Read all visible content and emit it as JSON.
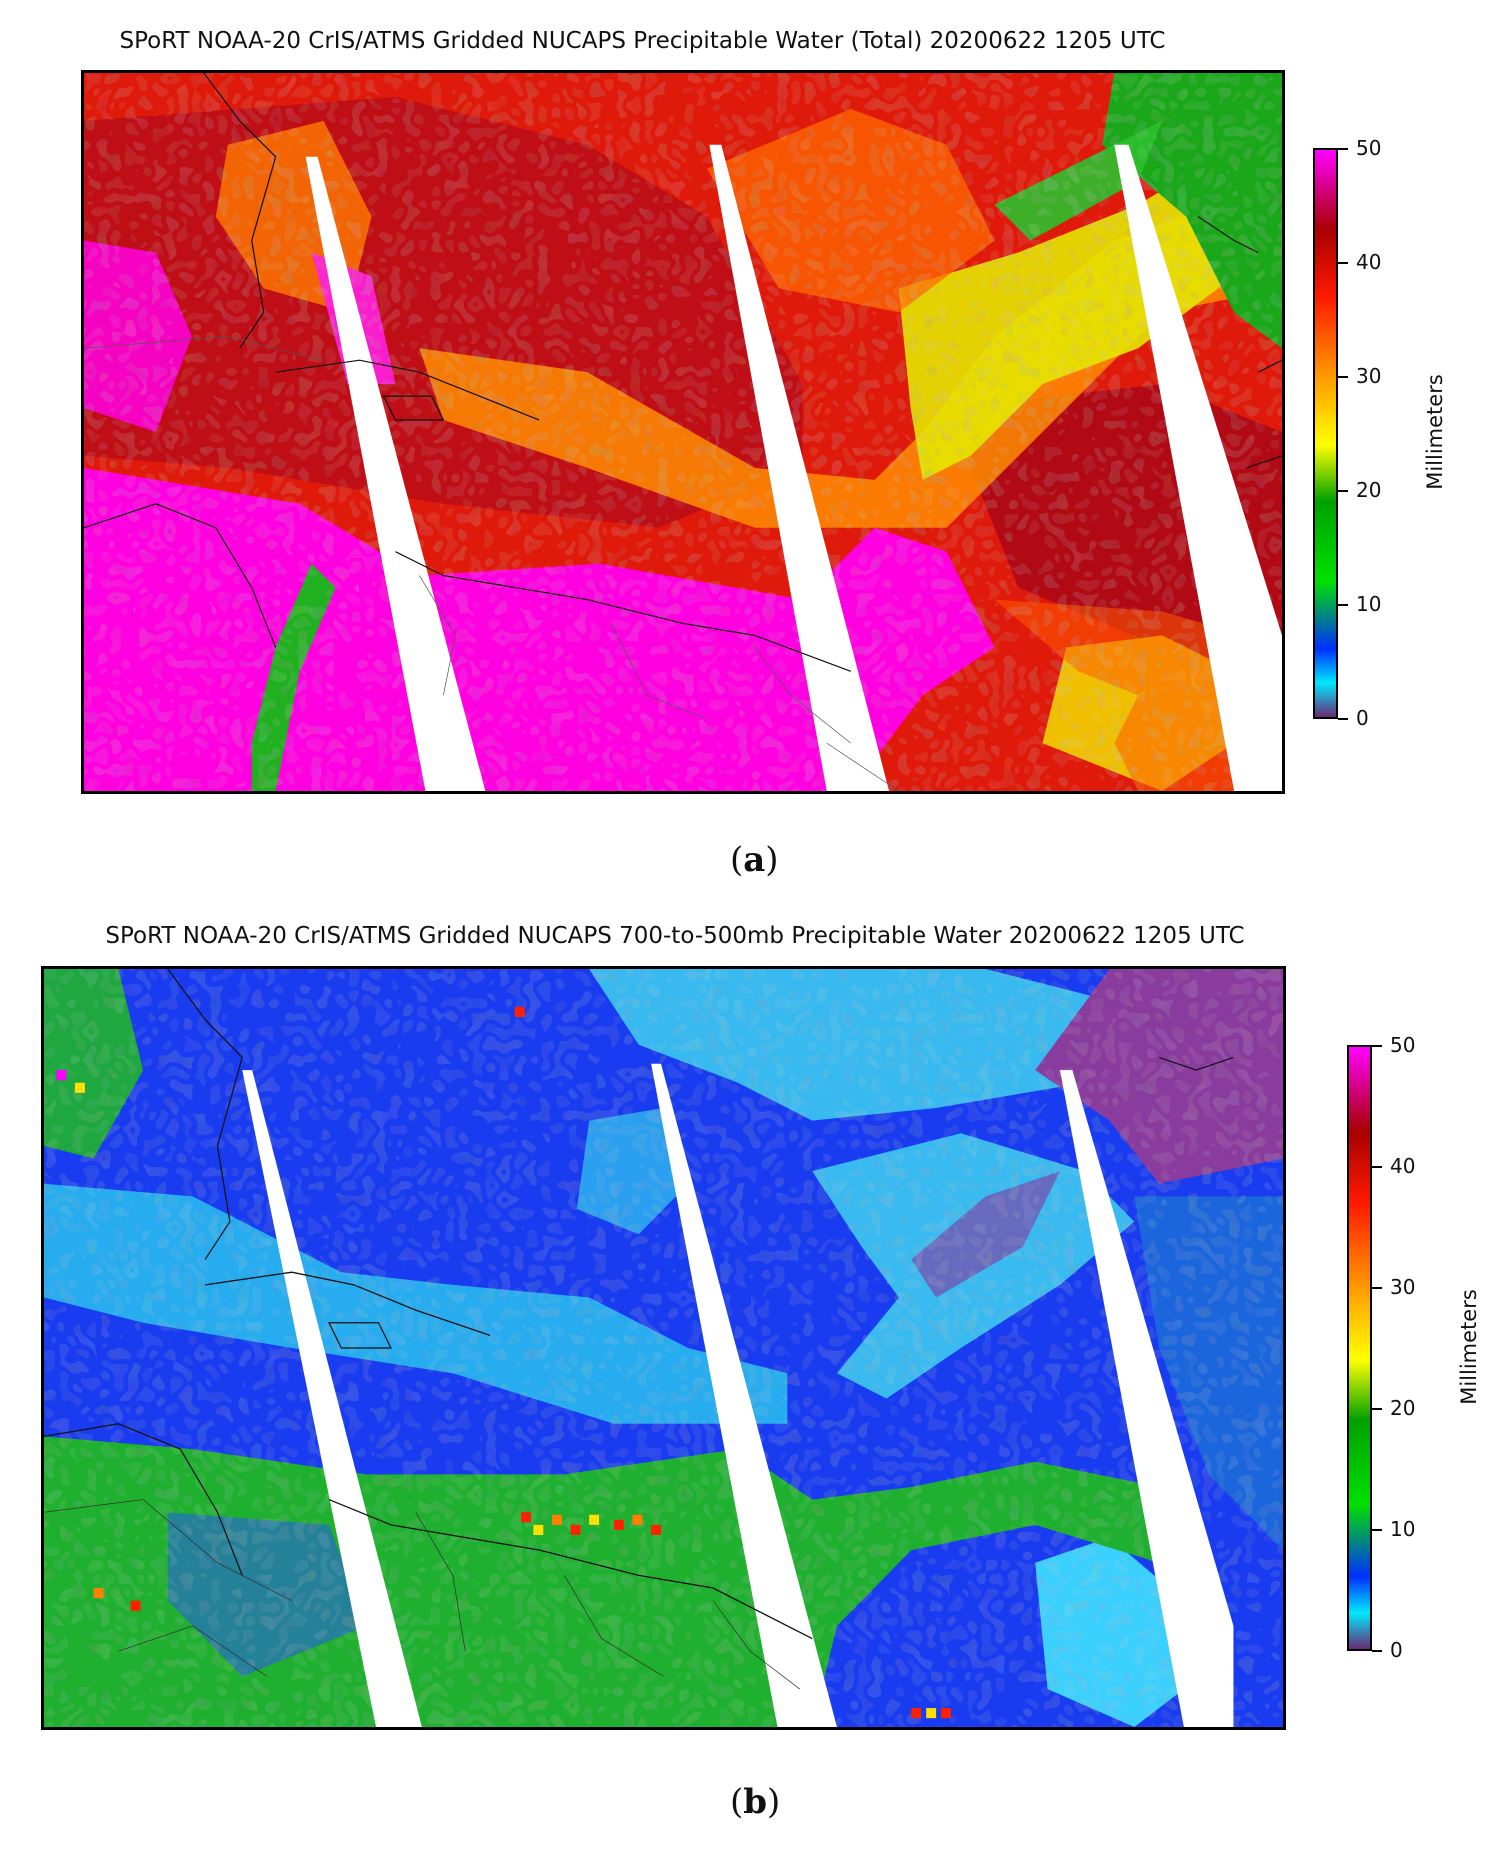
{
  "panels": [
    {
      "id": "a",
      "title": "SPoRT NOAA-20 CrIS/ATMS Gridded NUCAPS Precipitable Water (Total) 20200622 1205 UTC",
      "colorbar": {
        "label": "Millimeters",
        "ticks": [
          "50",
          "40",
          "30",
          "20",
          "10",
          "0"
        ],
        "range": [
          0,
          50
        ]
      },
      "letter": "a"
    },
    {
      "id": "b",
      "title": "SPoRT NOAA-20 CrIS/ATMS Gridded NUCAPS 700-to-500mb Precipitable Water 20200622 1205 UTC",
      "colorbar": {
        "label": "Millimeters",
        "ticks": [
          "50",
          "40",
          "30",
          "20",
          "10",
          "0"
        ],
        "range": [
          0,
          50
        ]
      },
      "letter": "b"
    }
  ],
  "colormap": [
    "#6a2a72",
    "#00e8ff",
    "#0030ff",
    "#00e000",
    "#00a000",
    "#ffff00",
    "#ff9a00",
    "#ff1a00",
    "#a80000",
    "#ff00ff"
  ]
}
